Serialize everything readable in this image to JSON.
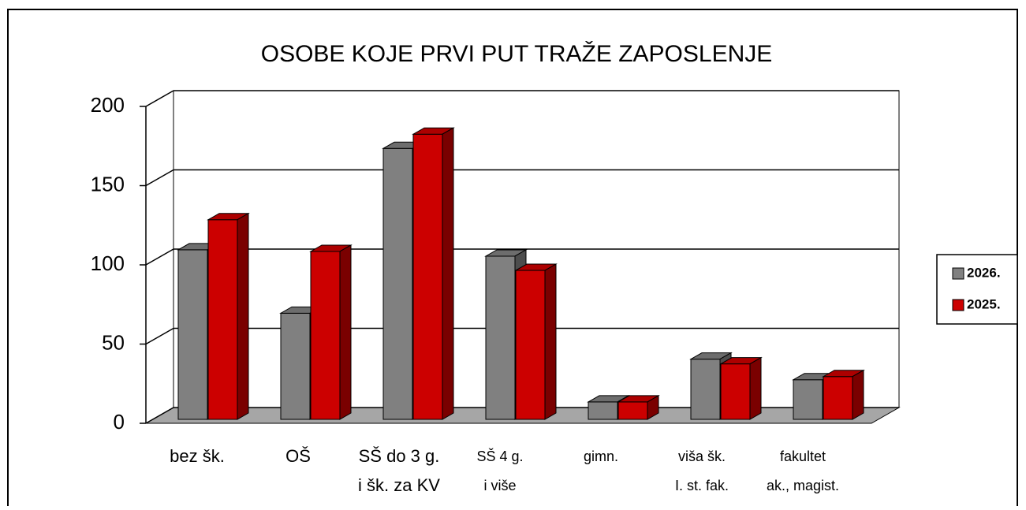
{
  "chart_data": {
    "type": "bar3d",
    "title": "OSOBE KOJE PRVI PUT TRAŽE ZAPOSLENJE",
    "categories": [
      [
        "bez šk."
      ],
      [
        "OŠ"
      ],
      [
        "SŠ do 3 g.",
        "i šk. za KV"
      ],
      [
        "SŠ 4 g.",
        "i više"
      ],
      [
        "gimn."
      ],
      [
        "viša šk.",
        "I. st. fak."
      ],
      [
        "fakultet",
        "ak., magist."
      ]
    ],
    "series": [
      {
        "name": "2026.",
        "color": "#808080",
        "values": [
          107,
          67,
          171,
          103,
          11,
          38,
          25
        ]
      },
      {
        "name": "2025.",
        "color": "#cc0000",
        "values": [
          126,
          106,
          180,
          94,
          11,
          35,
          27
        ]
      }
    ],
    "ylim": [
      0,
      200
    ],
    "yticks": [
      0,
      50,
      100,
      150,
      200
    ],
    "grid": true,
    "legend": "right"
  }
}
